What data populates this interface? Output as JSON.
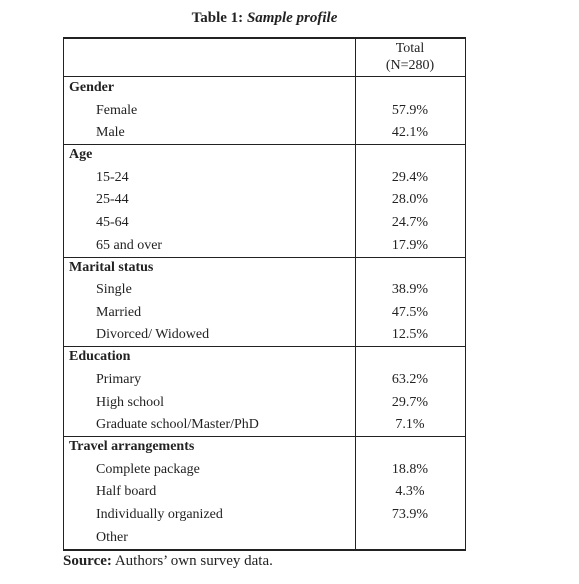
{
  "title": {
    "label": "Table 1:",
    "caption": "Sample profile"
  },
  "table": {
    "header": [
      "Total",
      "(N=280)"
    ],
    "sections": [
      {
        "name": "Gender",
        "rows": [
          {
            "label": "Female",
            "value": "57.9%"
          },
          {
            "label": "Male",
            "value": "42.1%"
          }
        ]
      },
      {
        "name": "Age",
        "rows": [
          {
            "label": "15-24",
            "value": "29.4%"
          },
          {
            "label": "25-44",
            "value": "28.0%"
          },
          {
            "label": "45-64",
            "value": "24.7%"
          },
          {
            "label": "65 and over",
            "value": "17.9%"
          }
        ]
      },
      {
        "name": "Marital status",
        "rows": [
          {
            "label": "Single",
            "value": "38.9%"
          },
          {
            "label": "Married",
            "value": "47.5%"
          },
          {
            "label": "Divorced/ Widowed",
            "value": "12.5%"
          }
        ]
      },
      {
        "name": "Education",
        "rows": [
          {
            "label": "Primary",
            "value": "63.2%"
          },
          {
            "label": "High school",
            "value": "29.7%"
          },
          {
            "label": "Graduate school/Master/PhD",
            "value": "7.1%"
          }
        ]
      },
      {
        "name": "Travel arrangements",
        "rows": [
          {
            "label": "Complete package",
            "value": "18.8%"
          },
          {
            "label": "Half board",
            "value": "4.3%"
          },
          {
            "label": "Individually organized",
            "value": "73.9%"
          },
          {
            "label": "Other"
          }
        ]
      }
    ]
  },
  "source": {
    "label": "Source:",
    "text": "Authors’ own survey data."
  }
}
